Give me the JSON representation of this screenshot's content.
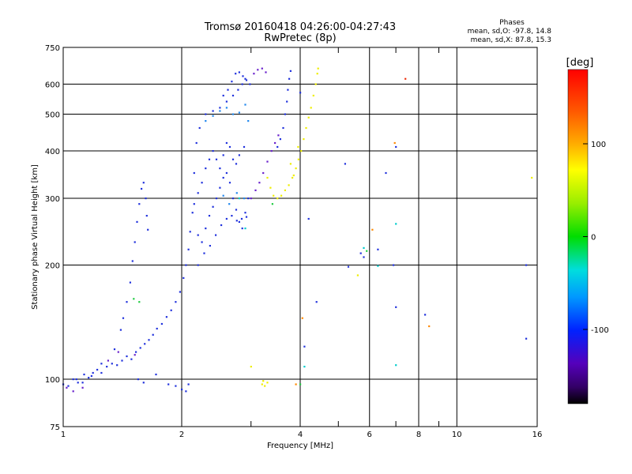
{
  "chart_data": {
    "type": "scatter",
    "title": "Tromsø 20160418 04:26:00-04:27:43",
    "subtitle": "RwPretec (8p)",
    "xlabel": "Frequency [MHz]",
    "ylabel": "Stationary phase Virtual Height [km]",
    "x_scale": "log",
    "y_scale": "log",
    "xlim": [
      1,
      16
    ],
    "ylim": [
      75,
      750
    ],
    "x_ticks": [
      1,
      2,
      4,
      6,
      8,
      10,
      16
    ],
    "x_minor_ticks": [
      3,
      5,
      7,
      9
    ],
    "y_ticks": [
      75,
      100,
      200,
      300,
      400,
      500,
      600,
      750
    ],
    "grid": true,
    "stats": {
      "header": "Phases",
      "line_o": "mean, sd,O: -97.8, 14.8",
      "line_x": "mean, sd,X:  87.8, 15.3"
    },
    "colorbar": {
      "label": "[deg]",
      "range": [
        -180,
        180
      ],
      "ticks": [
        "100",
        "0",
        "-100"
      ],
      "tick_values": [
        100,
        0,
        -100
      ]
    },
    "series": [
      {
        "color": "#2233dd",
        "points": [
          [
            1.0,
            97
          ],
          [
            1.03,
            96
          ],
          [
            1.06,
            100
          ],
          [
            1.09,
            98
          ],
          [
            1.13,
            103
          ],
          [
            1.16,
            101
          ],
          [
            1.19,
            104
          ],
          [
            1.22,
            106
          ],
          [
            1.25,
            104
          ],
          [
            1.29,
            108
          ],
          [
            1.33,
            110
          ],
          [
            1.37,
            109
          ],
          [
            1.41,
            112
          ],
          [
            1.45,
            115
          ],
          [
            1.49,
            113
          ],
          [
            1.53,
            118
          ],
          [
            1.57,
            121
          ],
          [
            1.61,
            124
          ],
          [
            1.65,
            127
          ],
          [
            1.69,
            131
          ],
          [
            1.73,
            136
          ],
          [
            1.78,
            140
          ],
          [
            1.83,
            146
          ],
          [
            1.88,
            152
          ],
          [
            1.93,
            160
          ],
          [
            1.98,
            170
          ],
          [
            2.02,
            185
          ],
          [
            2.05,
            200
          ],
          [
            2.08,
            220
          ],
          [
            2.1,
            245
          ],
          [
            2.13,
            275
          ],
          [
            1.08,
            100
          ],
          [
            1.12,
            98
          ],
          [
            1.18,
            102
          ],
          [
            1.25,
            110
          ],
          [
            1.35,
            120
          ],
          [
            1.4,
            135
          ],
          [
            1.42,
            145
          ],
          [
            1.45,
            160
          ],
          [
            1.48,
            180
          ],
          [
            1.5,
            205
          ],
          [
            1.52,
            230
          ],
          [
            1.54,
            260
          ],
          [
            1.56,
            290
          ],
          [
            1.58,
            318
          ],
          [
            1.6,
            330
          ],
          [
            1.62,
            300
          ],
          [
            1.63,
            270
          ],
          [
            1.64,
            248
          ],
          [
            1.55,
            100
          ],
          [
            1.6,
            98
          ],
          [
            1.72,
            103
          ],
          [
            1.85,
            97
          ],
          [
            1.93,
            96
          ],
          [
            2.0,
            94
          ],
          [
            2.05,
            93
          ],
          [
            2.08,
            97
          ],
          [
            2.15,
            350
          ],
          [
            2.18,
            420
          ],
          [
            2.22,
            460
          ],
          [
            2.3,
            500
          ],
          [
            2.4,
            510
          ],
          [
            2.5,
            520
          ],
          [
            2.6,
            540
          ],
          [
            2.7,
            560
          ],
          [
            2.78,
            580
          ],
          [
            2.85,
            600
          ],
          [
            2.9,
            620
          ],
          [
            2.2,
            240
          ],
          [
            2.25,
            230
          ],
          [
            2.3,
            250
          ],
          [
            2.35,
            270
          ],
          [
            2.4,
            285
          ],
          [
            2.45,
            300
          ],
          [
            2.5,
            320
          ],
          [
            2.55,
            340
          ],
          [
            2.6,
            350
          ],
          [
            2.65,
            330
          ],
          [
            2.7,
            300
          ],
          [
            2.75,
            280
          ],
          [
            2.8,
            260
          ],
          [
            2.85,
            250
          ],
          [
            2.9,
            275
          ],
          [
            2.95,
            300
          ],
          [
            2.15,
            290
          ],
          [
            2.2,
            310
          ],
          [
            2.25,
            330
          ],
          [
            2.3,
            360
          ],
          [
            2.35,
            380
          ],
          [
            2.4,
            400
          ],
          [
            2.45,
            380
          ],
          [
            2.5,
            360
          ],
          [
            2.55,
            390
          ],
          [
            2.6,
            420
          ],
          [
            2.65,
            410
          ],
          [
            2.7,
            380
          ],
          [
            2.75,
            370
          ],
          [
            2.8,
            390
          ],
          [
            2.88,
            410
          ],
          [
            2.2,
            200
          ],
          [
            2.28,
            215
          ],
          [
            2.36,
            225
          ],
          [
            2.44,
            240
          ],
          [
            2.52,
            255
          ],
          [
            2.6,
            265
          ],
          [
            2.68,
            270
          ],
          [
            2.76,
            262
          ],
          [
            2.84,
            265
          ],
          [
            2.92,
            268
          ],
          [
            2.55,
            560
          ],
          [
            2.62,
            580
          ],
          [
            2.68,
            610
          ],
          [
            2.74,
            640
          ],
          [
            2.8,
            645
          ],
          [
            2.86,
            630
          ],
          [
            2.92,
            615
          ],
          [
            2.98,
            600
          ],
          [
            3.5,
            410
          ],
          [
            3.56,
            430
          ],
          [
            3.62,
            460
          ],
          [
            3.66,
            500
          ],
          [
            3.7,
            540
          ],
          [
            3.72,
            580
          ],
          [
            3.75,
            620
          ],
          [
            3.78,
            650
          ],
          [
            4.0,
            570
          ],
          [
            5.2,
            370
          ],
          [
            5.7,
            215
          ],
          [
            5.8,
            210
          ],
          [
            6.3,
            220
          ],
          [
            6.6,
            350
          ],
          [
            6.9,
            200
          ],
          [
            7.0,
            155
          ],
          [
            7.0,
            410
          ],
          [
            8.3,
            148
          ],
          [
            15.0,
            200
          ],
          [
            15.0,
            128
          ],
          [
            4.1,
            122
          ],
          [
            4.2,
            265
          ],
          [
            4.4,
            160
          ],
          [
            5.3,
            198
          ]
        ]
      },
      {
        "color": "#6a22cc",
        "points": [
          [
            3.0,
            300
          ],
          [
            3.08,
            315
          ],
          [
            3.15,
            330
          ],
          [
            3.22,
            350
          ],
          [
            3.3,
            375
          ],
          [
            3.38,
            400
          ],
          [
            3.45,
            420
          ],
          [
            3.52,
            440
          ],
          [
            3.05,
            640
          ],
          [
            3.12,
            655
          ],
          [
            3.2,
            660
          ],
          [
            3.27,
            645
          ],
          [
            1.02,
            95
          ],
          [
            1.06,
            93
          ],
          [
            1.12,
            95
          ],
          [
            1.3,
            112
          ],
          [
            1.38,
            118
          ],
          [
            1.52,
            116
          ]
        ]
      },
      {
        "color": "#2288ee",
        "points": [
          [
            2.3,
            480
          ],
          [
            2.4,
            495
          ],
          [
            2.5,
            510
          ],
          [
            2.6,
            520
          ],
          [
            2.7,
            500
          ],
          [
            2.8,
            505
          ],
          [
            2.9,
            530
          ],
          [
            2.95,
            480
          ],
          [
            2.88,
            300
          ],
          [
            2.76,
            310
          ],
          [
            2.64,
            290
          ],
          [
            2.55,
            305
          ]
        ]
      },
      {
        "color": "#00cccc",
        "points": [
          [
            4.1,
            108
          ],
          [
            5.8,
            222
          ],
          [
            6.3,
            199
          ],
          [
            7.0,
            109
          ],
          [
            7.0,
            257
          ],
          [
            2.8,
            300
          ],
          [
            2.9,
            250
          ]
        ]
      },
      {
        "color": "#22cc44",
        "points": [
          [
            1.56,
            160
          ],
          [
            1.51,
            163
          ],
          [
            5.9,
            218
          ],
          [
            3.4,
            290
          ],
          [
            4.0,
            97
          ]
        ]
      },
      {
        "color": "#eeee00",
        "points": [
          [
            3.3,
            340
          ],
          [
            3.36,
            320
          ],
          [
            3.42,
            305
          ],
          [
            3.5,
            300
          ],
          [
            3.58,
            305
          ],
          [
            3.66,
            315
          ],
          [
            3.74,
            325
          ],
          [
            3.82,
            340
          ],
          [
            3.9,
            360
          ],
          [
            3.96,
            380
          ],
          [
            4.02,
            400
          ],
          [
            4.08,
            430
          ],
          [
            4.14,
            460
          ],
          [
            4.2,
            490
          ],
          [
            4.26,
            520
          ],
          [
            4.32,
            560
          ],
          [
            4.38,
            600
          ],
          [
            4.42,
            640
          ],
          [
            4.44,
            660
          ],
          [
            3.2,
            97
          ],
          [
            3.25,
            96
          ],
          [
            3.3,
            98
          ],
          [
            3.22,
            99
          ],
          [
            3.78,
            370
          ],
          [
            3.85,
            345
          ],
          [
            3.95,
            410
          ],
          [
            5.6,
            188
          ],
          [
            15.5,
            340
          ],
          [
            3.0,
            108
          ]
        ]
      },
      {
        "color": "#ff8800",
        "points": [
          [
            4.05,
            145
          ],
          [
            6.1,
            248
          ],
          [
            6.95,
            420
          ],
          [
            8.5,
            138
          ],
          [
            3.9,
            97
          ]
        ]
      },
      {
        "color": "#ee3311",
        "points": [
          [
            7.4,
            620
          ]
        ]
      }
    ]
  }
}
